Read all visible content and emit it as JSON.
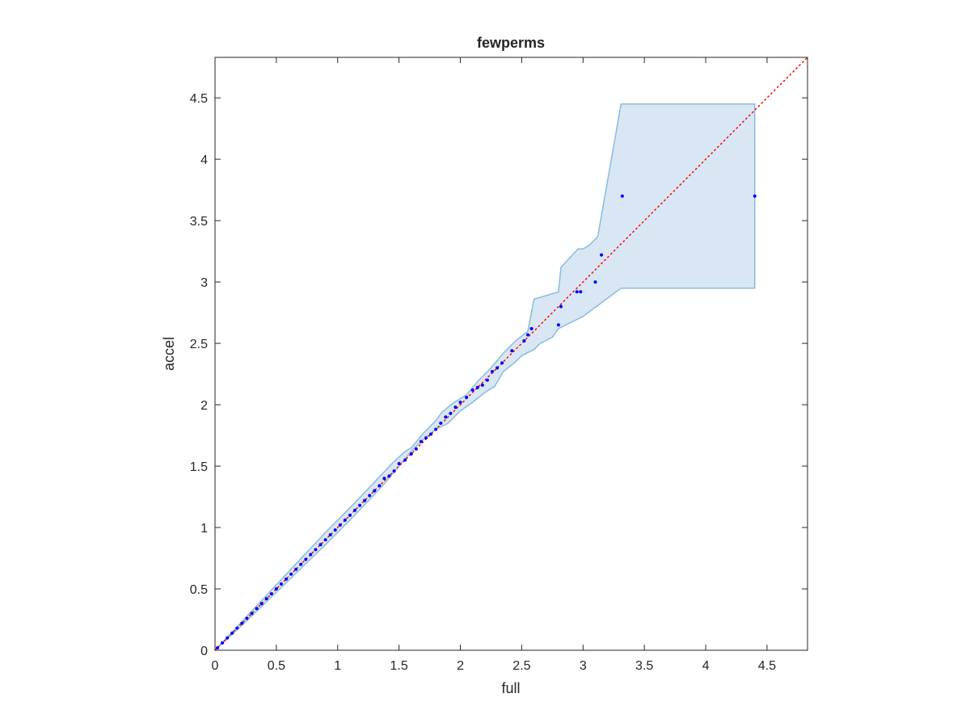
{
  "chart_data": {
    "type": "scatter",
    "title": "fewperms",
    "xlabel": "full",
    "ylabel": "accel",
    "xlim": [
      0,
      4.83
    ],
    "ylim": [
      0,
      4.83
    ],
    "xticks": [
      0,
      0.5,
      1,
      1.5,
      2,
      2.5,
      3,
      3.5,
      4,
      4.5
    ],
    "yticks": [
      0,
      0.5,
      1,
      1.5,
      2,
      2.5,
      3,
      3.5,
      4,
      4.5
    ],
    "xtick_labels": [
      "0",
      "0.5",
      "1",
      "1.5",
      "2",
      "2.5",
      "3",
      "3.5",
      "4",
      "4.5"
    ],
    "ytick_labels": [
      "0",
      "0.5",
      "1",
      "1.5",
      "2",
      "2.5",
      "3",
      "3.5",
      "4",
      "4.5"
    ],
    "grid": false,
    "colors": {
      "points": "#0000ff",
      "reference_line": "#ff0000",
      "band_fill": "#d8e7f3",
      "band_edge": "#8abbdc",
      "axes": "#262626"
    },
    "reference_line": {
      "style": "dotted",
      "from": [
        0,
        0
      ],
      "to": [
        4.83,
        4.83
      ]
    },
    "band": {
      "upper": [
        [
          0,
          0
        ],
        [
          0.3,
          0.32
        ],
        [
          0.6,
          0.64
        ],
        [
          0.9,
          0.96
        ],
        [
          1.1,
          1.16
        ],
        [
          1.3,
          1.37
        ],
        [
          1.45,
          1.53
        ],
        [
          1.55,
          1.62
        ],
        [
          1.6,
          1.65
        ],
        [
          1.7,
          1.77
        ],
        [
          1.8,
          1.87
        ],
        [
          1.85,
          1.94
        ],
        [
          1.95,
          2.02
        ],
        [
          2.05,
          2.08
        ],
        [
          2.15,
          2.2
        ],
        [
          2.25,
          2.3
        ],
        [
          2.35,
          2.42
        ],
        [
          2.45,
          2.52
        ],
        [
          2.55,
          2.6
        ],
        [
          2.6,
          2.86
        ],
        [
          2.8,
          2.92
        ],
        [
          2.82,
          3.12
        ],
        [
          2.96,
          3.27
        ],
        [
          3.0,
          3.27
        ],
        [
          3.05,
          3.3
        ],
        [
          3.12,
          3.37
        ],
        [
          3.31,
          4.45
        ],
        [
          4.4,
          4.45
        ]
      ],
      "lower": [
        [
          4.4,
          2.95
        ],
        [
          3.31,
          2.95
        ],
        [
          3.15,
          2.83
        ],
        [
          3.0,
          2.72
        ],
        [
          2.8,
          2.62
        ],
        [
          2.75,
          2.55
        ],
        [
          2.65,
          2.5
        ],
        [
          2.6,
          2.45
        ],
        [
          2.5,
          2.4
        ],
        [
          2.45,
          2.35
        ],
        [
          2.35,
          2.27
        ],
        [
          2.28,
          2.15
        ],
        [
          2.2,
          2.1
        ],
        [
          2.1,
          2.02
        ],
        [
          2.0,
          1.95
        ],
        [
          1.9,
          1.85
        ],
        [
          1.8,
          1.8
        ],
        [
          1.7,
          1.72
        ],
        [
          1.6,
          1.62
        ],
        [
          1.5,
          1.5
        ],
        [
          1.4,
          1.38
        ],
        [
          1.3,
          1.27
        ],
        [
          1.1,
          1.06
        ],
        [
          0.9,
          0.86
        ],
        [
          0.6,
          0.57
        ],
        [
          0.3,
          0.28
        ],
        [
          0,
          0
        ]
      ]
    },
    "series": [
      {
        "x": [
          0.02,
          0.06,
          0.1,
          0.14,
          0.18,
          0.22,
          0.26,
          0.3,
          0.34,
          0.38,
          0.42,
          0.46,
          0.5,
          0.54,
          0.58,
          0.62,
          0.66,
          0.7,
          0.74,
          0.78,
          0.82,
          0.86,
          0.9,
          0.94,
          0.98,
          1.02,
          1.06,
          1.1,
          1.14,
          1.18,
          1.22,
          1.26,
          1.3,
          1.34,
          1.38,
          1.42,
          1.46,
          1.5,
          1.55,
          1.6,
          1.64,
          1.68,
          1.72,
          1.76,
          1.8,
          1.84,
          1.88,
          1.92,
          1.96,
          2.0,
          2.05,
          2.1,
          2.14,
          2.18,
          2.22,
          2.26,
          2.3,
          2.34,
          2.42,
          2.52,
          2.55,
          2.58,
          2.8,
          2.82,
          2.95,
          2.98,
          3.1,
          3.15,
          3.32,
          4.4
        ],
        "y": [
          0.02,
          0.06,
          0.1,
          0.14,
          0.18,
          0.22,
          0.26,
          0.3,
          0.34,
          0.38,
          0.42,
          0.46,
          0.5,
          0.54,
          0.58,
          0.62,
          0.66,
          0.7,
          0.74,
          0.78,
          0.82,
          0.86,
          0.9,
          0.94,
          0.98,
          1.02,
          1.06,
          1.1,
          1.14,
          1.18,
          1.22,
          1.26,
          1.3,
          1.34,
          1.4,
          1.42,
          1.46,
          1.52,
          1.55,
          1.6,
          1.64,
          1.7,
          1.73,
          1.76,
          1.8,
          1.85,
          1.9,
          1.93,
          1.98,
          2.02,
          2.06,
          2.12,
          2.14,
          2.16,
          2.2,
          2.27,
          2.3,
          2.34,
          2.44,
          2.52,
          2.57,
          2.62,
          2.65,
          2.8,
          2.92,
          2.92,
          3.0,
          3.22,
          3.7,
          3.7
        ]
      }
    ]
  }
}
